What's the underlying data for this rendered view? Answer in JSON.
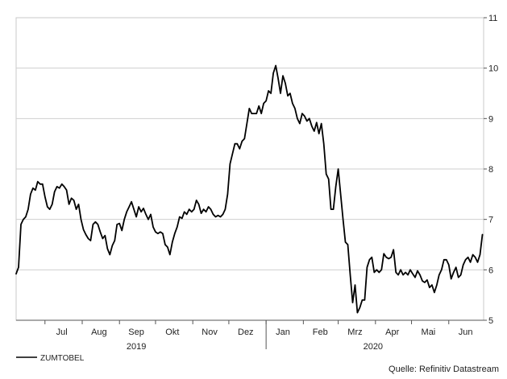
{
  "chart_data": {
    "type": "line",
    "title": "",
    "xlabel": "",
    "ylabel": "",
    "ylim": [
      5,
      11
    ],
    "yticks": [
      5,
      6,
      7,
      8,
      9,
      10,
      11
    ],
    "y_axis_side": "right",
    "grid": "horizontal",
    "x_range": [
      "2019-06-07",
      "2020-06-30"
    ],
    "month_labels": [
      {
        "label": "Jul",
        "date": "2019-07-15"
      },
      {
        "label": "Aug",
        "date": "2019-08-15"
      },
      {
        "label": "Sep",
        "date": "2019-09-15"
      },
      {
        "label": "Okt",
        "date": "2019-10-15"
      },
      {
        "label": "Nov",
        "date": "2019-11-15"
      },
      {
        "label": "Dez",
        "date": "2019-12-15"
      },
      {
        "label": "Jan",
        "date": "2020-01-15"
      },
      {
        "label": "Feb",
        "date": "2020-02-15"
      },
      {
        "label": "Mrz",
        "date": "2020-03-15"
      },
      {
        "label": "Apr",
        "date": "2020-04-15"
      },
      {
        "label": "Mai",
        "date": "2020-05-15"
      },
      {
        "label": "Jun",
        "date": "2020-06-15"
      }
    ],
    "month_ticks": [
      "2019-07-01",
      "2019-08-01",
      "2019-09-01",
      "2019-10-01",
      "2019-11-01",
      "2019-12-01",
      "2020-01-01",
      "2020-02-01",
      "2020-03-01",
      "2020-04-01",
      "2020-05-01",
      "2020-06-01"
    ],
    "year_labels": [
      {
        "label": "2019",
        "date": "2019-09-15"
      },
      {
        "label": "2020",
        "date": "2020-03-30"
      }
    ],
    "year_ticks": [
      "2020-01-01"
    ],
    "legend_position": "bottom-left",
    "series": [
      {
        "name": "ZUMTOBEL",
        "color": "#000000",
        "points": [
          [
            "2019-06-07",
            5.92
          ],
          [
            "2019-06-09",
            6.05
          ],
          [
            "2019-06-11",
            6.9
          ],
          [
            "2019-06-13",
            7.0
          ],
          [
            "2019-06-15",
            7.05
          ],
          [
            "2019-06-17",
            7.2
          ],
          [
            "2019-06-19",
            7.5
          ],
          [
            "2019-06-21",
            7.62
          ],
          [
            "2019-06-23",
            7.58
          ],
          [
            "2019-06-25",
            7.75
          ],
          [
            "2019-06-27",
            7.7
          ],
          [
            "2019-06-29",
            7.7
          ],
          [
            "2019-07-01",
            7.45
          ],
          [
            "2019-07-03",
            7.25
          ],
          [
            "2019-07-05",
            7.2
          ],
          [
            "2019-07-07",
            7.3
          ],
          [
            "2019-07-09",
            7.55
          ],
          [
            "2019-07-11",
            7.65
          ],
          [
            "2019-07-13",
            7.62
          ],
          [
            "2019-07-15",
            7.7
          ],
          [
            "2019-07-17",
            7.65
          ],
          [
            "2019-07-19",
            7.58
          ],
          [
            "2019-07-21",
            7.3
          ],
          [
            "2019-07-23",
            7.42
          ],
          [
            "2019-07-25",
            7.38
          ],
          [
            "2019-07-27",
            7.2
          ],
          [
            "2019-07-29",
            7.3
          ],
          [
            "2019-07-31",
            7.0
          ],
          [
            "2019-08-02",
            6.8
          ],
          [
            "2019-08-04",
            6.7
          ],
          [
            "2019-08-06",
            6.62
          ],
          [
            "2019-08-08",
            6.58
          ],
          [
            "2019-08-10",
            6.9
          ],
          [
            "2019-08-12",
            6.95
          ],
          [
            "2019-08-14",
            6.9
          ],
          [
            "2019-08-16",
            6.75
          ],
          [
            "2019-08-18",
            6.62
          ],
          [
            "2019-08-20",
            6.68
          ],
          [
            "2019-08-22",
            6.42
          ],
          [
            "2019-08-24",
            6.3
          ],
          [
            "2019-08-26",
            6.48
          ],
          [
            "2019-08-28",
            6.58
          ],
          [
            "2019-08-30",
            6.9
          ],
          [
            "2019-09-01",
            6.92
          ],
          [
            "2019-09-03",
            6.78
          ],
          [
            "2019-09-05",
            7.0
          ],
          [
            "2019-09-07",
            7.15
          ],
          [
            "2019-09-09",
            7.25
          ],
          [
            "2019-09-11",
            7.35
          ],
          [
            "2019-09-13",
            7.2
          ],
          [
            "2019-09-15",
            7.05
          ],
          [
            "2019-09-17",
            7.25
          ],
          [
            "2019-09-19",
            7.15
          ],
          [
            "2019-09-21",
            7.22
          ],
          [
            "2019-09-23",
            7.1
          ],
          [
            "2019-09-25",
            7.0
          ],
          [
            "2019-09-27",
            7.1
          ],
          [
            "2019-09-29",
            6.85
          ],
          [
            "2019-10-01",
            6.75
          ],
          [
            "2019-10-03",
            6.72
          ],
          [
            "2019-10-05",
            6.75
          ],
          [
            "2019-10-07",
            6.72
          ],
          [
            "2019-10-09",
            6.5
          ],
          [
            "2019-10-11",
            6.45
          ],
          [
            "2019-10-13",
            6.3
          ],
          [
            "2019-10-15",
            6.55
          ],
          [
            "2019-10-17",
            6.72
          ],
          [
            "2019-10-19",
            6.85
          ],
          [
            "2019-10-21",
            7.05
          ],
          [
            "2019-10-23",
            7.02
          ],
          [
            "2019-10-25",
            7.15
          ],
          [
            "2019-10-27",
            7.1
          ],
          [
            "2019-10-29",
            7.2
          ],
          [
            "2019-10-31",
            7.15
          ],
          [
            "2019-11-02",
            7.2
          ],
          [
            "2019-11-04",
            7.38
          ],
          [
            "2019-11-06",
            7.3
          ],
          [
            "2019-11-08",
            7.12
          ],
          [
            "2019-11-10",
            7.2
          ],
          [
            "2019-11-12",
            7.15
          ],
          [
            "2019-11-14",
            7.25
          ],
          [
            "2019-11-16",
            7.2
          ],
          [
            "2019-11-18",
            7.1
          ],
          [
            "2019-11-20",
            7.05
          ],
          [
            "2019-11-22",
            7.08
          ],
          [
            "2019-11-24",
            7.05
          ],
          [
            "2019-11-26",
            7.1
          ],
          [
            "2019-11-28",
            7.2
          ],
          [
            "2019-11-30",
            7.5
          ],
          [
            "2019-12-02",
            8.1
          ],
          [
            "2019-12-04",
            8.3
          ],
          [
            "2019-12-06",
            8.5
          ],
          [
            "2019-12-08",
            8.5
          ],
          [
            "2019-12-10",
            8.4
          ],
          [
            "2019-12-12",
            8.55
          ],
          [
            "2019-12-14",
            8.6
          ],
          [
            "2019-12-16",
            8.9
          ],
          [
            "2019-12-18",
            9.2
          ],
          [
            "2019-12-20",
            9.1
          ],
          [
            "2019-12-22",
            9.1
          ],
          [
            "2019-12-24",
            9.1
          ],
          [
            "2019-12-26",
            9.25
          ],
          [
            "2019-12-28",
            9.1
          ],
          [
            "2019-12-30",
            9.3
          ],
          [
            "2020-01-01",
            9.35
          ],
          [
            "2020-01-03",
            9.55
          ],
          [
            "2020-01-05",
            9.5
          ],
          [
            "2020-01-07",
            9.9
          ],
          [
            "2020-01-09",
            10.05
          ],
          [
            "2020-01-11",
            9.8
          ],
          [
            "2020-01-13",
            9.5
          ],
          [
            "2020-01-15",
            9.85
          ],
          [
            "2020-01-17",
            9.7
          ],
          [
            "2020-01-19",
            9.45
          ],
          [
            "2020-01-21",
            9.5
          ],
          [
            "2020-01-23",
            9.3
          ],
          [
            "2020-01-25",
            9.2
          ],
          [
            "2020-01-27",
            9.0
          ],
          [
            "2020-01-29",
            8.9
          ],
          [
            "2020-01-31",
            9.1
          ],
          [
            "2020-02-02",
            9.05
          ],
          [
            "2020-02-04",
            8.95
          ],
          [
            "2020-02-06",
            9.0
          ],
          [
            "2020-02-08",
            8.85
          ],
          [
            "2020-02-10",
            8.75
          ],
          [
            "2020-02-12",
            8.92
          ],
          [
            "2020-02-14",
            8.7
          ],
          [
            "2020-02-16",
            8.9
          ],
          [
            "2020-02-18",
            8.5
          ],
          [
            "2020-02-20",
            7.9
          ],
          [
            "2020-02-22",
            7.8
          ],
          [
            "2020-02-24",
            7.2
          ],
          [
            "2020-02-26",
            7.2
          ],
          [
            "2020-02-28",
            7.65
          ],
          [
            "2020-03-01",
            8.0
          ],
          [
            "2020-03-03",
            7.5
          ],
          [
            "2020-03-05",
            7.0
          ],
          [
            "2020-03-07",
            6.55
          ],
          [
            "2020-03-09",
            6.5
          ],
          [
            "2020-03-11",
            5.9
          ],
          [
            "2020-03-13",
            5.35
          ],
          [
            "2020-03-15",
            5.7
          ],
          [
            "2020-03-17",
            5.15
          ],
          [
            "2020-03-19",
            5.25
          ],
          [
            "2020-03-21",
            5.4
          ],
          [
            "2020-03-23",
            5.4
          ],
          [
            "2020-03-25",
            6.05
          ],
          [
            "2020-03-27",
            6.2
          ],
          [
            "2020-03-29",
            6.25
          ],
          [
            "2020-03-31",
            5.95
          ],
          [
            "2020-04-02",
            6.0
          ],
          [
            "2020-04-04",
            5.95
          ],
          [
            "2020-04-06",
            6.0
          ],
          [
            "2020-04-08",
            6.32
          ],
          [
            "2020-04-10",
            6.25
          ],
          [
            "2020-04-12",
            6.22
          ],
          [
            "2020-04-14",
            6.25
          ],
          [
            "2020-04-16",
            6.4
          ],
          [
            "2020-04-18",
            5.95
          ],
          [
            "2020-04-20",
            5.9
          ],
          [
            "2020-04-22",
            6.0
          ],
          [
            "2020-04-24",
            5.9
          ],
          [
            "2020-04-26",
            5.95
          ],
          [
            "2020-04-28",
            5.9
          ],
          [
            "2020-04-30",
            6.0
          ],
          [
            "2020-05-02",
            5.92
          ],
          [
            "2020-05-04",
            5.85
          ],
          [
            "2020-05-06",
            5.98
          ],
          [
            "2020-05-08",
            5.9
          ],
          [
            "2020-05-10",
            5.78
          ],
          [
            "2020-05-12",
            5.75
          ],
          [
            "2020-05-14",
            5.8
          ],
          [
            "2020-05-16",
            5.65
          ],
          [
            "2020-05-18",
            5.7
          ],
          [
            "2020-05-20",
            5.55
          ],
          [
            "2020-05-22",
            5.7
          ],
          [
            "2020-05-24",
            5.9
          ],
          [
            "2020-05-26",
            6.0
          ],
          [
            "2020-05-28",
            6.2
          ],
          [
            "2020-05-30",
            6.2
          ],
          [
            "2020-06-01",
            6.1
          ],
          [
            "2020-06-03",
            5.82
          ],
          [
            "2020-06-05",
            5.95
          ],
          [
            "2020-06-07",
            6.05
          ],
          [
            "2020-06-09",
            5.85
          ],
          [
            "2020-06-11",
            5.9
          ],
          [
            "2020-06-13",
            6.1
          ],
          [
            "2020-06-15",
            6.2
          ],
          [
            "2020-06-17",
            6.25
          ],
          [
            "2020-06-19",
            6.15
          ],
          [
            "2020-06-21",
            6.3
          ],
          [
            "2020-06-23",
            6.25
          ],
          [
            "2020-06-25",
            6.15
          ],
          [
            "2020-06-27",
            6.3
          ],
          [
            "2020-06-29",
            6.7
          ]
        ]
      }
    ]
  },
  "source": "Quelle: Refinitiv Datastream"
}
